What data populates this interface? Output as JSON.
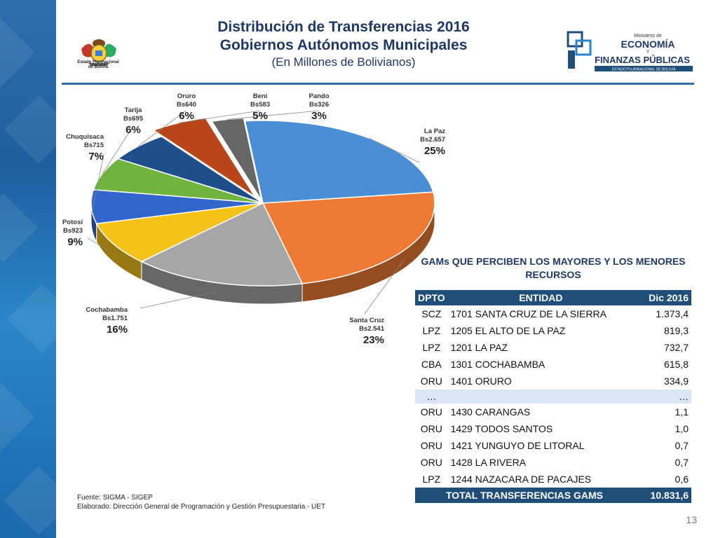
{
  "title": "Distribución de Transferencias 2016",
  "title_line2": "Gobiernos Autónomos Municipales",
  "subtitle": "(En Millones de Bolivianos)",
  "emblem_text": [
    "Estado Plurinacional",
    "de Bolivia"
  ],
  "ministry_logo": {
    "top": "Ministerio de",
    "line1": "ECONOMÍA",
    "amp": "Y",
    "line2": "FINANZAS PÚBLICAS",
    "line3": "ESTADO PLURINACIONAL DE BOLIVIA"
  },
  "chart_data": {
    "type": "pie",
    "title": "",
    "slices": [
      {
        "name": "La Paz",
        "label": "Bs2.657",
        "value": 2657,
        "percent": "25%",
        "color": "#4a8fd6"
      },
      {
        "name": "Santa Cruz",
        "label": "Bs2.541",
        "value": 2541,
        "percent": "23%",
        "color": "#ef7a33"
      },
      {
        "name": "Cochabamba",
        "label": "Bs1.751",
        "value": 1751,
        "percent": "16%",
        "color": "#a6a6a6"
      },
      {
        "name": "Potosí",
        "label": "Bs923",
        "value": 923,
        "percent": "9%",
        "color": "#f5c21a"
      },
      {
        "name": "Chuquisaca",
        "label": "Bs715",
        "value": 715,
        "percent": "7%",
        "color": "#3366cc"
      },
      {
        "name": "Tarija",
        "label": "Bs695",
        "value": 695,
        "percent": "6%",
        "color": "#6fb43f"
      },
      {
        "name": "Oruro",
        "label": "Bs640",
        "value": 640,
        "percent": "6%",
        "color": "#1f4f8a"
      },
      {
        "name": "Beni",
        "label": "Bs583",
        "value": 583,
        "percent": "5%",
        "color": "#b8461a"
      },
      {
        "name": "Pando",
        "label": "Bs326",
        "value": 326,
        "percent": "3%",
        "color": "#666666"
      }
    ]
  },
  "table": {
    "title": "GAMs QUE PERCIBEN LOS MAYORES Y LOS MENORES RECURSOS",
    "headers": [
      "DPTO",
      "ENTIDAD",
      "Dic 2016"
    ],
    "rows": [
      [
        "SCZ",
        "1701 SANTA CRUZ DE LA SIERRA",
        "1.373,4"
      ],
      [
        "LPZ",
        "1205 EL ALTO DE LA PAZ",
        "819,3"
      ],
      [
        "LPZ",
        "1201 LA PAZ",
        "732,7"
      ],
      [
        "CBA",
        "1301 COCHABAMBA",
        "615,8"
      ],
      [
        "ORU",
        "1401 ORURO",
        "334,9"
      ]
    ],
    "ellipsis": [
      "…",
      "…"
    ],
    "rows_low": [
      [
        "ORU",
        "1430 CARANGAS",
        "1,1"
      ],
      [
        "ORU",
        "1429 TODOS SANTOS",
        "1,0"
      ],
      [
        "ORU",
        "1421 YUNGUYO DE LITORAL",
        "0,7"
      ],
      [
        "ORU",
        "1428 LA RIVERA",
        "0,7"
      ],
      [
        "LPZ",
        "1244 NAZACARA DE PACAJES",
        "0,6"
      ]
    ],
    "total_label": "TOTAL TRANSFERENCIAS GAMS",
    "total_value": "10.831,6"
  },
  "source": "Fuente: SIGMA - SIGEP",
  "elaboration": "Elaborado: Dirección General de Programación y Gestión Presupuestaria - UET",
  "page_number": "13"
}
